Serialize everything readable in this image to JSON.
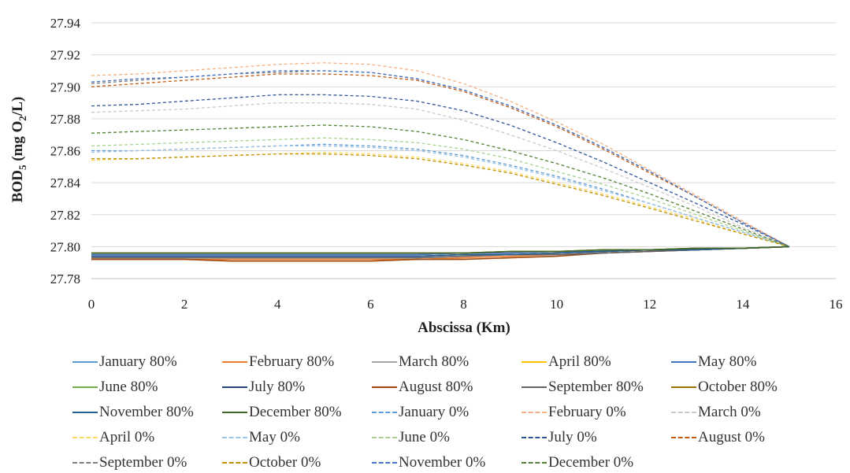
{
  "chart_data": {
    "type": "line",
    "title": "",
    "xlabel": "Abscissa (Km)",
    "ylabel": "BOD5 (mg O2/L)",
    "ylabel_parts": {
      "a": "BOD",
      "sub1": "5",
      "b": " (mg O",
      "sub2": "2",
      "c": "/L)"
    },
    "xlim": [
      0,
      16
    ],
    "ylim": [
      27.78,
      27.94
    ],
    "xticks": [
      "0",
      "2",
      "4",
      "6",
      "8",
      "10",
      "12",
      "14",
      "16"
    ],
    "yticks": [
      "27.78",
      "27.80",
      "27.82",
      "27.84",
      "27.86",
      "27.88",
      "27.90",
      "27.92",
      "27.94"
    ],
    "grid": "horizontal",
    "legend_position": "bottom",
    "x": [
      0,
      1,
      2,
      3,
      4,
      5,
      6,
      7,
      8,
      9,
      10,
      11,
      12,
      13,
      14,
      15
    ],
    "series": [
      {
        "name": "January  80%",
        "color": "#5b9bd5",
        "dash": "solid",
        "values": [
          27.795,
          27.795,
          27.795,
          27.795,
          27.795,
          27.795,
          27.795,
          27.795,
          27.796,
          27.796,
          27.797,
          27.797,
          27.798,
          27.799,
          27.799,
          27.8
        ]
      },
      {
        "name": "February 80%",
        "color": "#ed7d31",
        "dash": "solid",
        "values": [
          27.792,
          27.792,
          27.792,
          27.792,
          27.792,
          27.792,
          27.792,
          27.792,
          27.793,
          27.794,
          27.795,
          27.796,
          27.797,
          27.798,
          27.799,
          27.8
        ]
      },
      {
        "name": "March 80%",
        "color": "#a5a5a5",
        "dash": "solid",
        "values": [
          27.793,
          27.793,
          27.793,
          27.793,
          27.793,
          27.793,
          27.793,
          27.793,
          27.794,
          27.795,
          27.795,
          27.796,
          27.797,
          27.798,
          27.799,
          27.8
        ]
      },
      {
        "name": "April 80%",
        "color": "#ffc000",
        "dash": "solid",
        "values": [
          27.796,
          27.796,
          27.796,
          27.796,
          27.796,
          27.796,
          27.796,
          27.796,
          27.796,
          27.797,
          27.797,
          27.798,
          27.798,
          27.799,
          27.799,
          27.8
        ]
      },
      {
        "name": "May 80%",
        "color": "#4472c4",
        "dash": "solid",
        "values": [
          27.795,
          27.795,
          27.795,
          27.795,
          27.795,
          27.795,
          27.795,
          27.795,
          27.796,
          27.796,
          27.797,
          27.797,
          27.798,
          27.799,
          27.799,
          27.8
        ]
      },
      {
        "name": "June 80%",
        "color": "#70ad47",
        "dash": "solid",
        "values": [
          27.796,
          27.796,
          27.796,
          27.796,
          27.796,
          27.796,
          27.796,
          27.796,
          27.796,
          27.797,
          27.797,
          27.798,
          27.798,
          27.799,
          27.799,
          27.8
        ]
      },
      {
        "name": "July 80%",
        "color": "#264478",
        "dash": "solid",
        "values": [
          27.794,
          27.794,
          27.794,
          27.794,
          27.794,
          27.794,
          27.794,
          27.794,
          27.795,
          27.795,
          27.796,
          27.797,
          27.798,
          27.798,
          27.799,
          27.8
        ]
      },
      {
        "name": "August 80%",
        "color": "#9e480e",
        "dash": "solid",
        "values": [
          27.792,
          27.792,
          27.792,
          27.791,
          27.791,
          27.791,
          27.791,
          27.792,
          27.792,
          27.793,
          27.794,
          27.796,
          27.797,
          27.798,
          27.799,
          27.8
        ]
      },
      {
        "name": "September 80%",
        "color": "#636363",
        "dash": "solid",
        "values": [
          27.793,
          27.793,
          27.793,
          27.793,
          27.793,
          27.793,
          27.793,
          27.793,
          27.794,
          27.795,
          27.795,
          27.796,
          27.797,
          27.798,
          27.799,
          27.8
        ]
      },
      {
        "name": "October 80%",
        "color": "#997300",
        "dash": "solid",
        "values": [
          27.796,
          27.796,
          27.796,
          27.796,
          27.796,
          27.796,
          27.796,
          27.796,
          27.796,
          27.797,
          27.797,
          27.798,
          27.798,
          27.799,
          27.799,
          27.8
        ]
      },
      {
        "name": "November 80%",
        "color": "#255e91",
        "dash": "solid",
        "values": [
          27.794,
          27.794,
          27.794,
          27.794,
          27.794,
          27.794,
          27.794,
          27.794,
          27.795,
          27.795,
          27.796,
          27.797,
          27.798,
          27.798,
          27.799,
          27.8
        ]
      },
      {
        "name": "December 80%",
        "color": "#43682b",
        "dash": "solid",
        "values": [
          27.796,
          27.796,
          27.796,
          27.796,
          27.796,
          27.796,
          27.796,
          27.796,
          27.796,
          27.797,
          27.797,
          27.798,
          27.798,
          27.799,
          27.799,
          27.8
        ]
      },
      {
        "name": "January 0%",
        "color": "#5b9bd5",
        "dash": "dashed",
        "values": [
          27.86,
          27.86,
          27.861,
          27.862,
          27.863,
          27.864,
          27.863,
          27.861,
          27.857,
          27.851,
          27.844,
          27.836,
          27.827,
          27.818,
          27.809,
          27.8
        ]
      },
      {
        "name": "February 0%",
        "color": "#f4b183",
        "dash": "dashed",
        "values": [
          27.907,
          27.908,
          27.91,
          27.912,
          27.914,
          27.915,
          27.914,
          27.91,
          27.902,
          27.891,
          27.878,
          27.864,
          27.848,
          27.832,
          27.816,
          27.8
        ]
      },
      {
        "name": "March 0%",
        "color": "#c9c9c9",
        "dash": "dashed",
        "values": [
          27.884,
          27.885,
          27.886,
          27.888,
          27.89,
          27.89,
          27.889,
          27.886,
          27.879,
          27.87,
          27.86,
          27.849,
          27.837,
          27.825,
          27.812,
          27.8
        ]
      },
      {
        "name": "April 0%",
        "color": "#ffd966",
        "dash": "dashed",
        "values": [
          27.854,
          27.855,
          27.856,
          27.857,
          27.858,
          27.859,
          27.858,
          27.856,
          27.852,
          27.847,
          27.84,
          27.833,
          27.825,
          27.817,
          27.808,
          27.8
        ]
      },
      {
        "name": "May 0%",
        "color": "#9dc3e6",
        "dash": "dashed",
        "values": [
          27.859,
          27.86,
          27.861,
          27.862,
          27.863,
          27.863,
          27.862,
          27.86,
          27.856,
          27.85,
          27.843,
          27.835,
          27.827,
          27.818,
          27.809,
          27.8
        ]
      },
      {
        "name": "June 0%",
        "color": "#a9d18e",
        "dash": "dashed",
        "values": [
          27.863,
          27.864,
          27.865,
          27.866,
          27.867,
          27.868,
          27.867,
          27.865,
          27.861,
          27.855,
          27.847,
          27.839,
          27.83,
          27.82,
          27.81,
          27.8
        ]
      },
      {
        "name": "July 0%",
        "color": "#2f5597",
        "dash": "dashed",
        "values": [
          27.888,
          27.889,
          27.891,
          27.893,
          27.895,
          27.895,
          27.894,
          27.891,
          27.885,
          27.876,
          27.865,
          27.853,
          27.84,
          27.827,
          27.814,
          27.8
        ]
      },
      {
        "name": "August 0%",
        "color": "#c55a11",
        "dash": "dashed",
        "values": [
          27.9,
          27.902,
          27.904,
          27.906,
          27.908,
          27.908,
          27.907,
          27.904,
          27.897,
          27.887,
          27.875,
          27.861,
          27.846,
          27.831,
          27.815,
          27.8
        ]
      },
      {
        "name": "September 0%",
        "color": "#7f7f7f",
        "dash": "dashed",
        "values": [
          27.902,
          27.904,
          27.906,
          27.908,
          27.909,
          27.91,
          27.909,
          27.905,
          27.898,
          27.888,
          27.876,
          27.862,
          27.847,
          27.831,
          27.815,
          27.8
        ]
      },
      {
        "name": "October 0%",
        "color": "#bf9000",
        "dash": "dashed",
        "values": [
          27.855,
          27.855,
          27.856,
          27.857,
          27.858,
          27.858,
          27.857,
          27.855,
          27.851,
          27.846,
          27.839,
          27.832,
          27.824,
          27.816,
          27.808,
          27.8
        ]
      },
      {
        "name": "November 0%",
        "color": "#4472c4",
        "dash": "dashed",
        "values": [
          27.903,
          27.905,
          27.906,
          27.908,
          27.91,
          27.91,
          27.909,
          27.905,
          27.898,
          27.888,
          27.876,
          27.862,
          27.847,
          27.831,
          27.815,
          27.8
        ]
      },
      {
        "name": "December 0%",
        "color": "#548235",
        "dash": "dashed",
        "values": [
          27.871,
          27.872,
          27.873,
          27.874,
          27.875,
          27.876,
          27.875,
          27.872,
          27.867,
          27.86,
          27.852,
          27.843,
          27.833,
          27.822,
          27.811,
          27.8
        ]
      }
    ]
  }
}
